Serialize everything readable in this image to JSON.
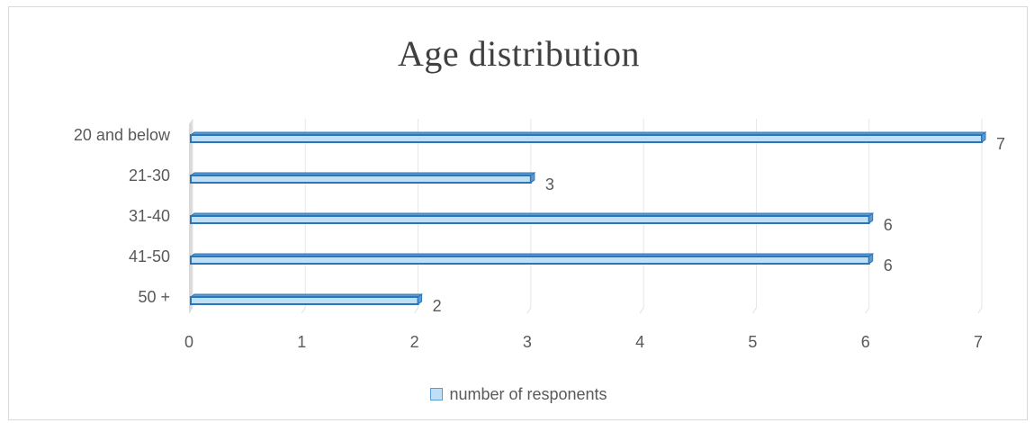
{
  "chart_data": {
    "type": "bar",
    "orientation": "horizontal",
    "title": "Age distribution",
    "categories": [
      "20 and below",
      "21-30",
      "31-40",
      "41-50",
      "50 +"
    ],
    "series": [
      {
        "name": "number of responents",
        "values": [
          7,
          3,
          6,
          6,
          2
        ]
      }
    ],
    "x_ticks": [
      "0",
      "1",
      "2",
      "3",
      "4",
      "5",
      "6",
      "7"
    ],
    "xlim": [
      0,
      7
    ],
    "grid": true,
    "data_labels": true,
    "legend_position": "bottom",
    "colors": {
      "bar_fill": "#bde0f7",
      "bar_edge": "#2e75b6",
      "bar_face": "#5b9bd5"
    }
  }
}
